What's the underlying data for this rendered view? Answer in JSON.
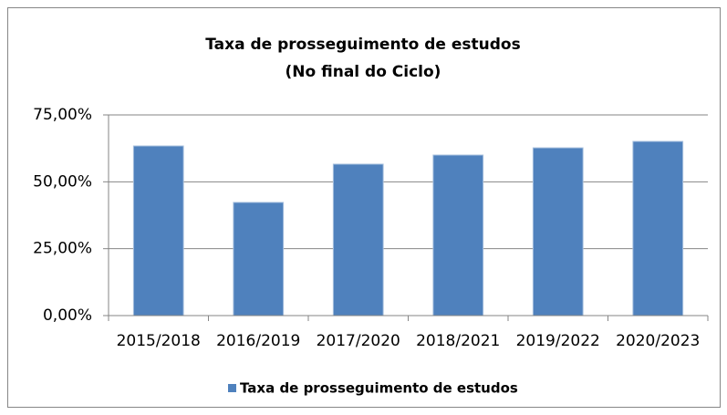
{
  "chart_data": {
    "type": "bar",
    "title": "Taxa de prosseguimento de estudos",
    "subtitle": "(No final do Ciclo)",
    "categories": [
      "2015/2018",
      "2016/2019",
      "2017/2020",
      "2018/2021",
      "2019/2022",
      "2020/2023"
    ],
    "series": [
      {
        "name": "Taxa de prosseguimento de estudos",
        "color": "#4f81bd",
        "values": [
          63.4,
          42.3,
          56.6,
          60,
          62.7,
          65.1
        ]
      }
    ],
    "ylim": [
      0,
      75
    ],
    "yticks": [
      {
        "value": 0,
        "label": "0,00%"
      },
      {
        "value": 25,
        "label": "25,00%"
      },
      {
        "value": 50,
        "label": "50,00%"
      },
      {
        "value": 75,
        "label": "75,00%"
      }
    ],
    "grid": true,
    "legend": "bottom"
  }
}
